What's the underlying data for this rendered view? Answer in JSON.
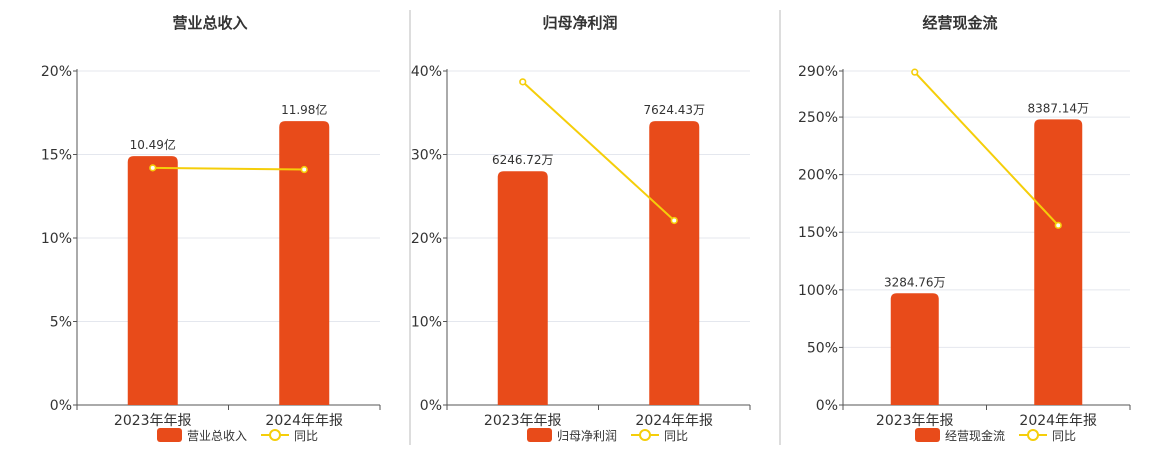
{
  "colors": {
    "bar": "#E84B1A",
    "line": "#F5CE0A",
    "grid": "#E4E7EE",
    "axis": "#555555",
    "divider": "#BBBBBB"
  },
  "chart_data": [
    {
      "type": "bar",
      "title": "营业总收入",
      "categories": [
        "2023年年报",
        "2024年年报"
      ],
      "bar_series": {
        "name": "营业总收入",
        "values": [
          14.9,
          17.0
        ],
        "labels": [
          "10.49亿",
          "11.98亿"
        ]
      },
      "line_series": {
        "name": "同比",
        "values": [
          14.2,
          14.1
        ]
      },
      "y_ticks": [
        "0%",
        "5%",
        "10%",
        "15%",
        "20%"
      ],
      "ylim": [
        0,
        20
      ],
      "grid": true,
      "legend": "bottom"
    },
    {
      "type": "bar",
      "title": "归母净利润",
      "categories": [
        "2023年年报",
        "2024年年报"
      ],
      "bar_series": {
        "name": "归母净利润",
        "values": [
          28.0,
          34.0
        ],
        "labels": [
          "6246.72万",
          "7624.43万"
        ]
      },
      "line_series": {
        "name": "同比",
        "values": [
          38.7,
          22.1
        ]
      },
      "y_ticks": [
        "0%",
        "10%",
        "20%",
        "30%",
        "40%"
      ],
      "ylim": [
        0,
        40
      ],
      "grid": true,
      "legend": "bottom"
    },
    {
      "type": "bar",
      "title": "经营现金流",
      "categories": [
        "2023年年报",
        "2024年年报"
      ],
      "bar_series": {
        "name": "经营现金流",
        "values": [
          97,
          248
        ],
        "labels": [
          "3284.76万",
          "8387.14万"
        ]
      },
      "line_series": {
        "name": "同比",
        "values": [
          289,
          156
        ]
      },
      "y_ticks": [
        "0%",
        "50%",
        "100%",
        "150%",
        "200%",
        "250%",
        "290%"
      ],
      "y_tick_values": [
        0,
        50,
        100,
        150,
        200,
        250,
        290
      ],
      "ylim": [
        0,
        290
      ],
      "grid": true,
      "legend": "bottom"
    }
  ]
}
